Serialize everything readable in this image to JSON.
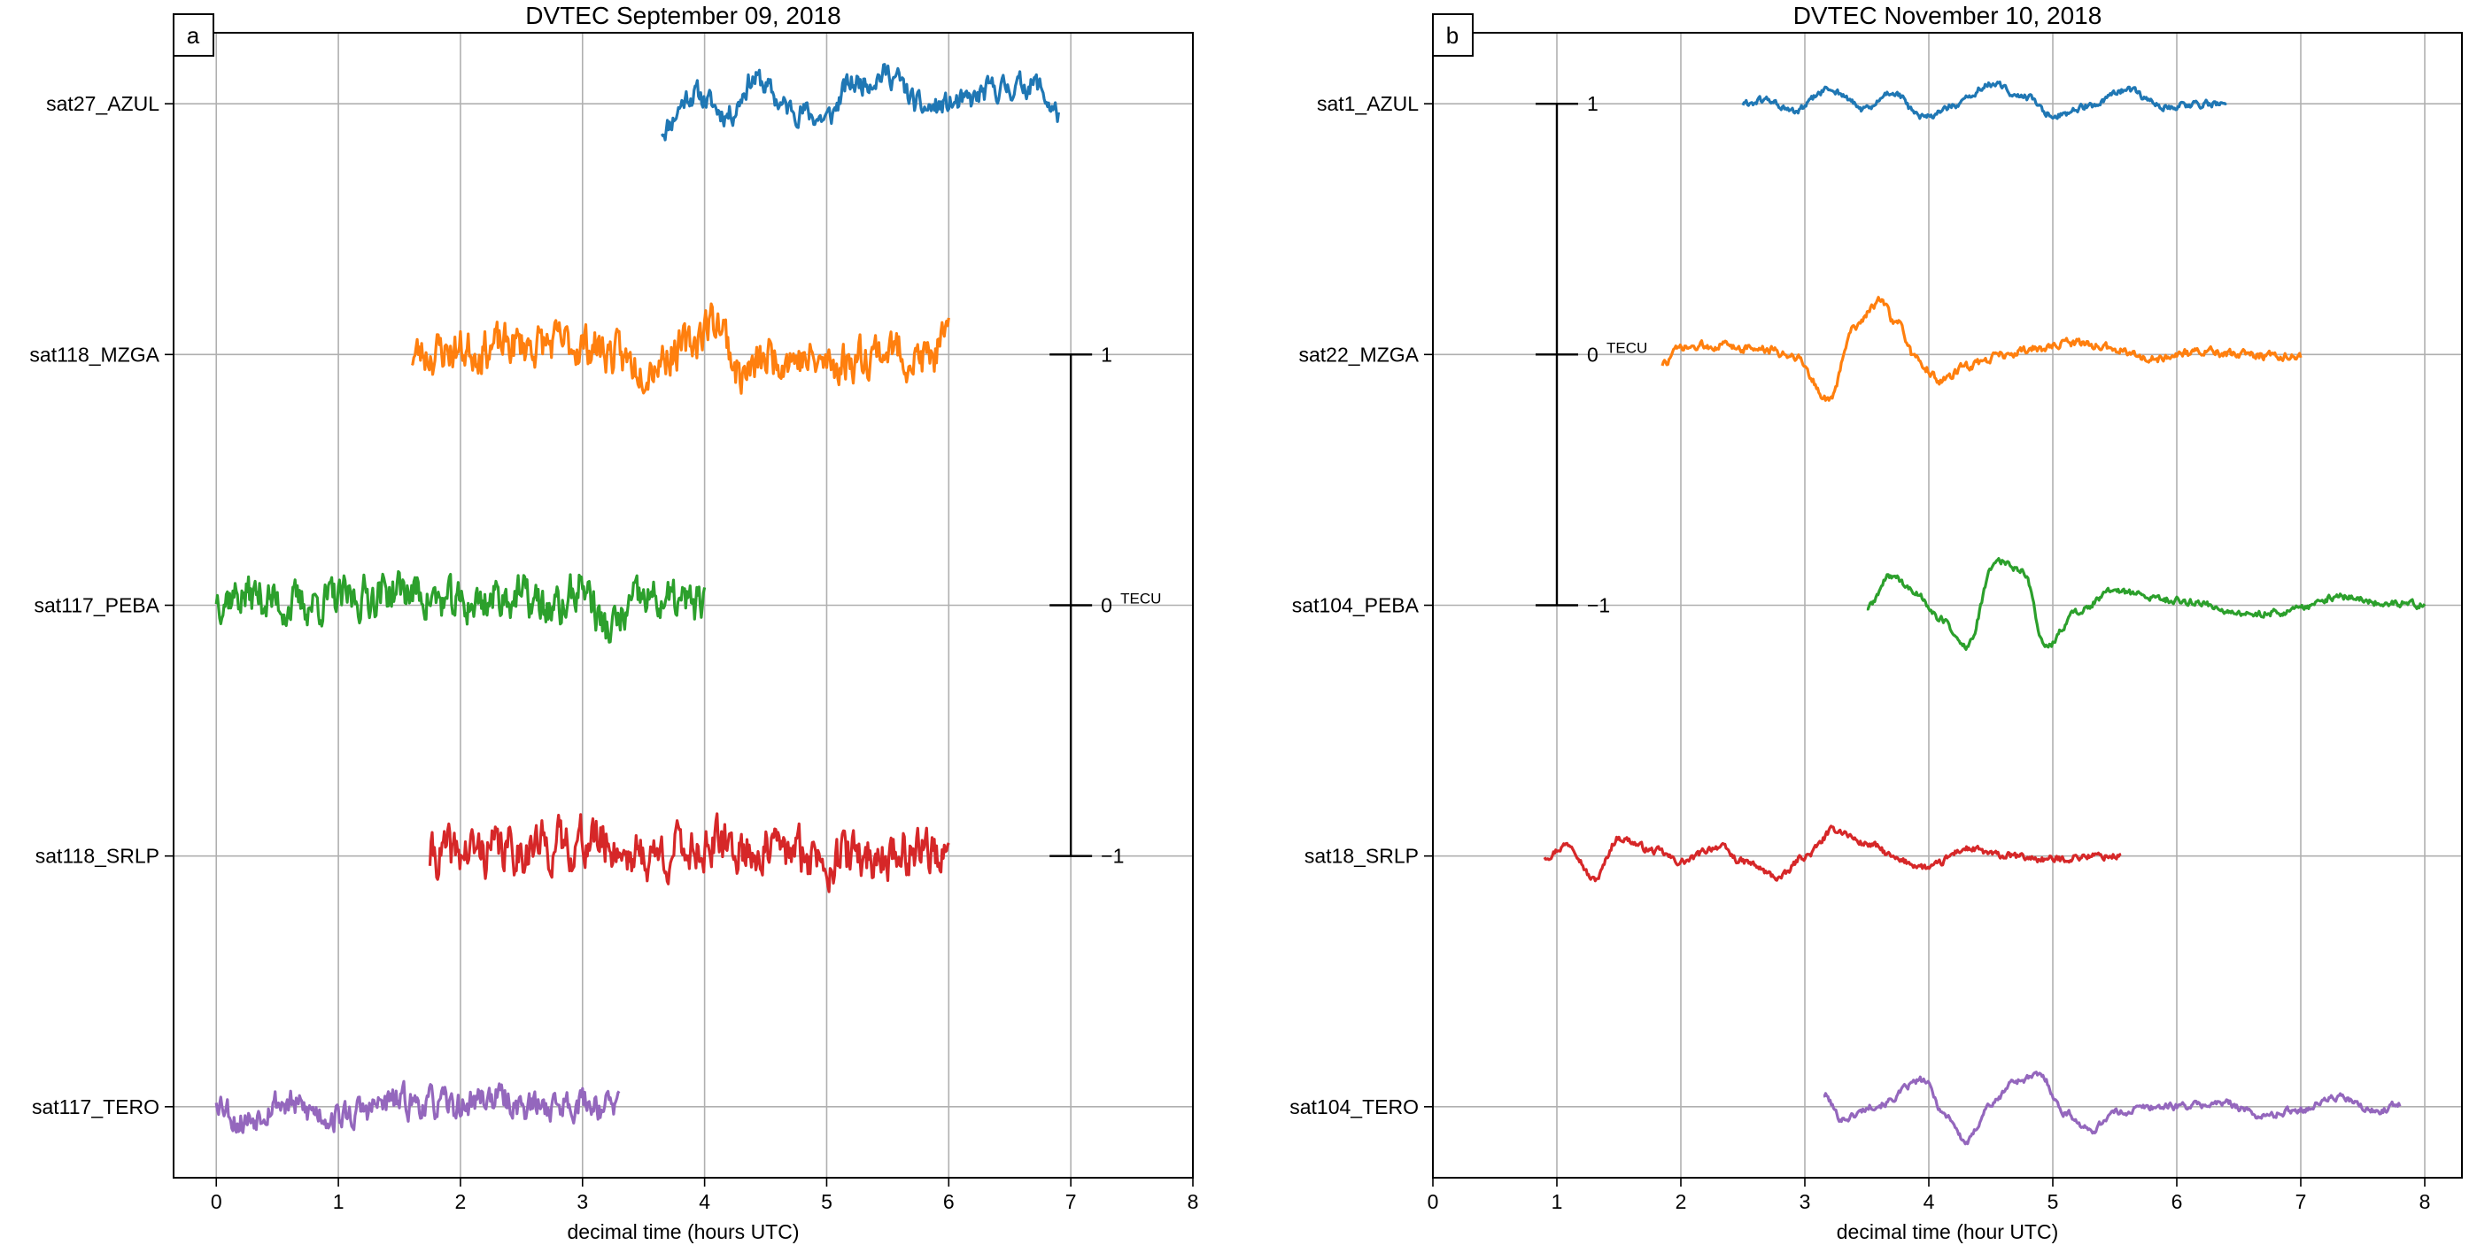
{
  "chart_data": [
    {
      "panel_label": "a",
      "type": "line",
      "title": "DVTEC September 09, 2018",
      "xlabel": "decimal time (hours UTC)",
      "ylabel": "",
      "xlim": [
        -0.35,
        8
      ],
      "x_ticks": [
        "0",
        "1",
        "2",
        "3",
        "4",
        "5",
        "6",
        "7",
        "8"
      ],
      "grid": true,
      "scale_bar": {
        "x": 7.0,
        "upper_label": "1",
        "middle_label": "0",
        "unit_label": "TECU",
        "lower_label": "−1",
        "span_tecu": 2
      },
      "series": [
        {
          "name": "sat27_AZUL",
          "color": "#1f77b4",
          "x_start": 3.65,
          "x_end": 6.9,
          "amplitude": 0.12,
          "noise": 0.02,
          "seed": 11,
          "anchors": [
            [
              3.65,
              -0.05
            ],
            [
              3.9,
              0.02
            ],
            [
              4.2,
              -0.02
            ],
            [
              4.4,
              0.05
            ],
            [
              4.7,
              -0.01
            ],
            [
              5.0,
              -0.03
            ],
            [
              5.2,
              0.04
            ],
            [
              5.5,
              0.06
            ],
            [
              5.8,
              -0.01
            ],
            [
              6.1,
              0.0
            ],
            [
              6.4,
              0.03
            ],
            [
              6.7,
              0.04
            ],
            [
              6.9,
              -0.02
            ]
          ]
        },
        {
          "name": "sat118_MZGA",
          "color": "#ff7f0e",
          "x_start": 1.6,
          "x_end": 6.0,
          "amplitude": 0.12,
          "noise": 0.035,
          "seed": 23,
          "anchors": [
            [
              1.6,
              0.0
            ],
            [
              2.0,
              0.01
            ],
            [
              2.5,
              0.02
            ],
            [
              3.0,
              0.02
            ],
            [
              3.5,
              -0.02
            ],
            [
              3.8,
              0.01
            ],
            [
              4.1,
              0.07
            ],
            [
              4.3,
              -0.04
            ],
            [
              4.6,
              0.0
            ],
            [
              5.0,
              -0.02
            ],
            [
              5.5,
              0.01
            ],
            [
              5.8,
              -0.01
            ],
            [
              6.0,
              0.02
            ]
          ]
        },
        {
          "name": "sat117_PEBA",
          "color": "#2ca02c",
          "x_start": 0.0,
          "x_end": 4.0,
          "amplitude": 0.12,
          "noise": 0.035,
          "seed": 37,
          "anchors": [
            [
              0.0,
              0.02
            ],
            [
              0.3,
              0.02
            ],
            [
              0.6,
              0.0
            ],
            [
              1.0,
              0.01
            ],
            [
              1.5,
              0.03
            ],
            [
              2.0,
              0.0
            ],
            [
              2.4,
              0.02
            ],
            [
              2.8,
              -0.01
            ],
            [
              3.0,
              0.04
            ],
            [
              3.2,
              -0.05
            ],
            [
              3.5,
              0.01
            ],
            [
              4.0,
              0.0
            ]
          ]
        },
        {
          "name": "sat118_SRLP",
          "color": "#d62728",
          "x_start": 1.75,
          "x_end": 6.0,
          "amplitude": 0.12,
          "noise": 0.04,
          "seed": 41,
          "anchors": [
            [
              1.75,
              0.0
            ],
            [
              2.2,
              0.01
            ],
            [
              2.7,
              0.02
            ],
            [
              3.1,
              0.03
            ],
            [
              3.5,
              0.0
            ],
            [
              4.0,
              0.02
            ],
            [
              4.5,
              0.01
            ],
            [
              5.0,
              0.0
            ],
            [
              5.5,
              0.0
            ],
            [
              5.8,
              0.02
            ],
            [
              6.0,
              -0.02
            ]
          ]
        },
        {
          "name": "sat117_TERO",
          "color": "#9467bd",
          "x_start": 0.0,
          "x_end": 3.3,
          "amplitude": 0.12,
          "noise": 0.025,
          "seed": 53,
          "anchors": [
            [
              0.0,
              0.02
            ],
            [
              0.2,
              -0.03
            ],
            [
              0.5,
              0.01
            ],
            [
              0.8,
              -0.01
            ],
            [
              1.0,
              -0.02
            ],
            [
              1.5,
              0.01
            ],
            [
              2.0,
              0.0
            ],
            [
              2.2,
              0.02
            ],
            [
              2.6,
              0.0
            ],
            [
              3.0,
              0.01
            ],
            [
              3.3,
              0.0
            ]
          ]
        }
      ]
    },
    {
      "panel_label": "b",
      "type": "line",
      "title": "DVTEC November 10, 2018",
      "xlabel": "decimal time (hour UTC)",
      "ylabel": "",
      "xlim": [
        0,
        8.3
      ],
      "x_ticks": [
        "0",
        "1",
        "2",
        "3",
        "4",
        "5",
        "6",
        "7",
        "8"
      ],
      "grid": true,
      "scale_bar": {
        "x": 1.0,
        "upper_label": "1",
        "middle_label": "0",
        "unit_label": "TECU",
        "lower_label": "−1",
        "span_tecu": 2
      },
      "series": [
        {
          "name": "sat1_AZUL",
          "color": "#1f77b4",
          "x_start": 2.5,
          "x_end": 6.4,
          "amplitude": 0.5,
          "noise": 0.025,
          "seed": 61,
          "anchors": [
            [
              2.5,
              0.0
            ],
            [
              2.7,
              0.03
            ],
            [
              2.9,
              -0.07
            ],
            [
              3.2,
              0.12
            ],
            [
              3.5,
              -0.05
            ],
            [
              3.7,
              0.1
            ],
            [
              3.95,
              -0.12
            ],
            [
              4.2,
              -0.02
            ],
            [
              4.5,
              0.16
            ],
            [
              4.8,
              0.05
            ],
            [
              5.0,
              -0.1
            ],
            [
              5.3,
              -0.02
            ],
            [
              5.6,
              0.11
            ],
            [
              5.9,
              -0.02
            ],
            [
              6.2,
              0.0
            ],
            [
              6.4,
              0.0
            ]
          ]
        },
        {
          "name": "sat22_MZGA",
          "color": "#ff7f0e",
          "x_start": 1.85,
          "x_end": 7.0,
          "amplitude": 0.5,
          "noise": 0.03,
          "seed": 73,
          "anchors": [
            [
              1.85,
              -0.08
            ],
            [
              2.0,
              0.05
            ],
            [
              2.3,
              0.08
            ],
            [
              2.6,
              0.05
            ],
            [
              2.9,
              0.0
            ],
            [
              3.2,
              -0.38
            ],
            [
              3.4,
              0.25
            ],
            [
              3.6,
              0.44
            ],
            [
              3.75,
              0.25
            ],
            [
              3.9,
              -0.05
            ],
            [
              4.1,
              -0.22
            ],
            [
              4.3,
              -0.1
            ],
            [
              4.6,
              0.0
            ],
            [
              4.9,
              0.05
            ],
            [
              5.2,
              0.1
            ],
            [
              5.5,
              0.05
            ],
            [
              5.8,
              -0.04
            ],
            [
              6.2,
              0.02
            ],
            [
              6.5,
              0.0
            ],
            [
              7.0,
              -0.02
            ]
          ]
        },
        {
          "name": "sat104_PEBA",
          "color": "#2ca02c",
          "x_start": 3.5,
          "x_end": 8.0,
          "amplitude": 0.5,
          "noise": 0.025,
          "seed": 89,
          "anchors": [
            [
              3.5,
              -0.02
            ],
            [
              3.7,
              0.25
            ],
            [
              3.9,
              0.1
            ],
            [
              4.1,
              -0.12
            ],
            [
              4.3,
              -0.35
            ],
            [
              4.55,
              0.38
            ],
            [
              4.75,
              0.3
            ],
            [
              4.95,
              -0.35
            ],
            [
              5.2,
              -0.05
            ],
            [
              5.5,
              0.12
            ],
            [
              5.9,
              0.05
            ],
            [
              6.2,
              0.02
            ],
            [
              6.5,
              -0.08
            ],
            [
              6.9,
              -0.05
            ],
            [
              7.3,
              0.07
            ],
            [
              7.7,
              0.02
            ],
            [
              8.0,
              0.0
            ]
          ]
        },
        {
          "name": "sat18_SRLP",
          "color": "#d62728",
          "x_start": 0.9,
          "x_end": 5.55,
          "amplitude": 0.5,
          "noise": 0.025,
          "seed": 97,
          "anchors": [
            [
              0.9,
              0.0
            ],
            [
              1.1,
              0.1
            ],
            [
              1.3,
              -0.2
            ],
            [
              1.5,
              0.15
            ],
            [
              1.8,
              0.04
            ],
            [
              2.0,
              -0.05
            ],
            [
              2.3,
              0.08
            ],
            [
              2.5,
              -0.05
            ],
            [
              2.8,
              -0.18
            ],
            [
              3.0,
              0.0
            ],
            [
              3.25,
              0.22
            ],
            [
              3.5,
              0.1
            ],
            [
              3.8,
              -0.05
            ],
            [
              4.0,
              -0.1
            ],
            [
              4.3,
              0.06
            ],
            [
              4.6,
              0.0
            ],
            [
              5.0,
              -0.03
            ],
            [
              5.3,
              0.0
            ],
            [
              5.55,
              0.0
            ]
          ]
        },
        {
          "name": "sat104_TERO",
          "color": "#9467bd",
          "x_start": 3.15,
          "x_end": 7.8,
          "amplitude": 0.5,
          "noise": 0.025,
          "seed": 101,
          "anchors": [
            [
              3.15,
              0.1
            ],
            [
              3.3,
              -0.1
            ],
            [
              3.6,
              0.02
            ],
            [
              3.95,
              0.22
            ],
            [
              4.15,
              -0.08
            ],
            [
              4.3,
              -0.3
            ],
            [
              4.5,
              0.02
            ],
            [
              4.7,
              0.22
            ],
            [
              4.9,
              0.26
            ],
            [
              5.1,
              -0.05
            ],
            [
              5.3,
              -0.2
            ],
            [
              5.5,
              -0.05
            ],
            [
              5.8,
              0.0
            ],
            [
              6.1,
              0.01
            ],
            [
              6.4,
              0.03
            ],
            [
              6.7,
              -0.08
            ],
            [
              7.0,
              -0.02
            ],
            [
              7.3,
              0.08
            ],
            [
              7.6,
              -0.04
            ],
            [
              7.8,
              0.02
            ]
          ]
        }
      ]
    }
  ]
}
